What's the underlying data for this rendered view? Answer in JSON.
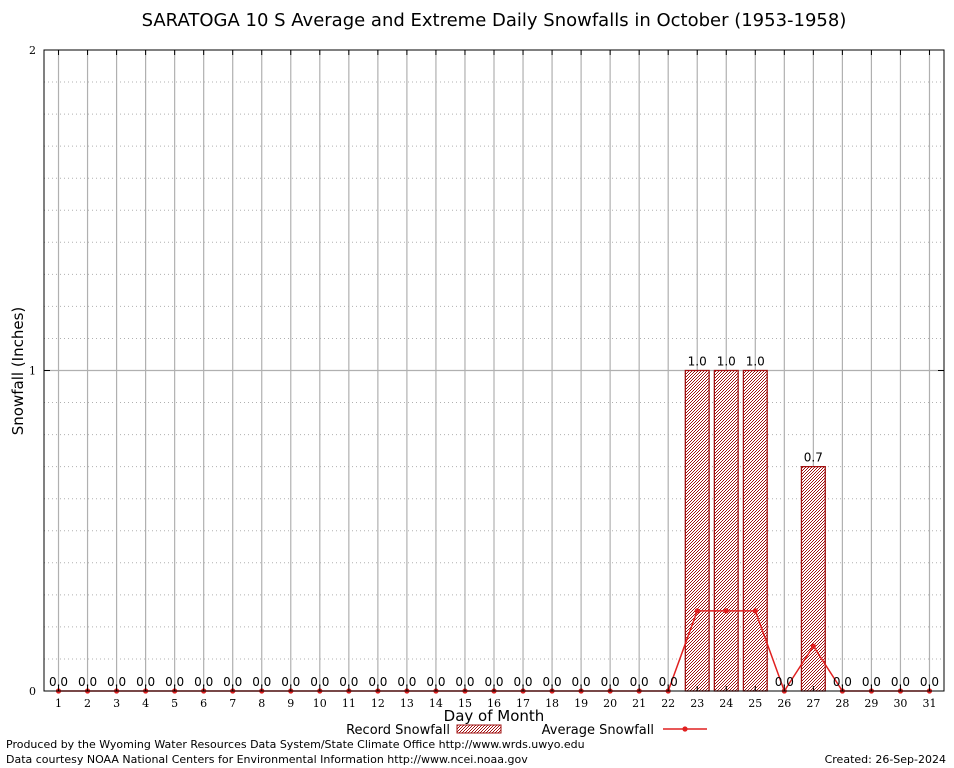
{
  "chart_data": {
    "type": "bar",
    "title": "SARATOGA 10 S Average and Extreme Daily Snowfalls in October (1953-1958)",
    "xlabel": "Day of Month",
    "ylabel": "Snowfall (Inches)",
    "ylim": [
      0,
      2
    ],
    "yticks": [
      "0",
      "1",
      "2"
    ],
    "grid": true,
    "categories": [
      "1",
      "2",
      "3",
      "4",
      "5",
      "6",
      "7",
      "8",
      "9",
      "10",
      "11",
      "12",
      "13",
      "14",
      "15",
      "16",
      "17",
      "18",
      "19",
      "20",
      "21",
      "22",
      "23",
      "24",
      "25",
      "26",
      "27",
      "28",
      "29",
      "30",
      "31"
    ],
    "series": [
      {
        "name": "Record Snowfall",
        "kind": "bar",
        "color": "#a01010",
        "values": [
          0,
          0,
          0,
          0,
          0,
          0,
          0,
          0,
          0,
          0,
          0,
          0,
          0,
          0,
          0,
          0,
          0,
          0,
          0,
          0,
          0,
          0,
          1.0,
          1.0,
          1.0,
          0,
          0.7,
          0,
          0,
          0,
          0
        ],
        "labels": [
          "0.0",
          "0.0",
          "0.0",
          "0.0",
          "0.0",
          "0.0",
          "0.0",
          "0.0",
          "0.0",
          "0.0",
          "0.0",
          "0.0",
          "0.0",
          "0.0",
          "0.0",
          "0.0",
          "0.0",
          "0.0",
          "0.0",
          "0.0",
          "0.0",
          "0.0",
          "1.0",
          "1.0",
          "1.0",
          "0.0",
          "0.7",
          "0.0",
          "0.0",
          "0.0",
          "0.0"
        ]
      },
      {
        "name": "Average Snowfall",
        "kind": "line",
        "color": "#e02020",
        "values": [
          0,
          0,
          0,
          0,
          0,
          0,
          0,
          0,
          0,
          0,
          0,
          0,
          0,
          0,
          0,
          0,
          0,
          0,
          0,
          0,
          0,
          0,
          0.25,
          0.25,
          0.25,
          0,
          0.14,
          0,
          0,
          0,
          0
        ]
      }
    ],
    "legend": "bottom-center"
  },
  "footer": {
    "produced_by": "Produced by the Wyoming Water Resources Data System/State Climate Office http://www.wrds.uwyo.edu",
    "courtesy": "Data courtesy NOAA National Centers for Environmental Information http://www.ncei.noaa.gov",
    "created": "Created:  26-Sep-2024"
  }
}
